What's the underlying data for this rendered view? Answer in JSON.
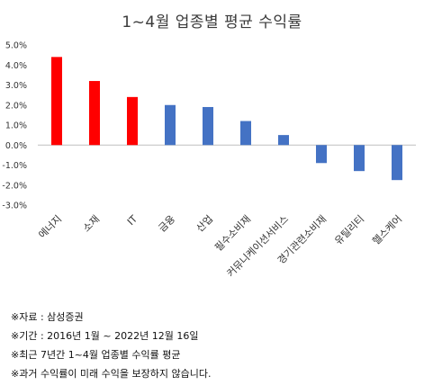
{
  "chart_data": {
    "type": "bar",
    "title": "1~4월 업종별 평균 수익률",
    "categories": [
      "에너지",
      "소재",
      "IT",
      "금융",
      "산업",
      "필수소비재",
      "커뮤니케이션서비스",
      "경기관련소비재",
      "유틸리티",
      "헬스케어"
    ],
    "values": [
      4.4,
      3.2,
      2.4,
      2.0,
      1.9,
      1.2,
      0.5,
      -0.9,
      -1.3,
      -1.75
    ],
    "bar_colors": [
      "#ff0000",
      "#ff0000",
      "#ff0000",
      "#4472c4",
      "#4472c4",
      "#4472c4",
      "#4472c4",
      "#4472c4",
      "#4472c4",
      "#4472c4"
    ],
    "ylim": [
      -3.0,
      5.0
    ],
    "yticks": [
      5.0,
      4.0,
      3.0,
      2.0,
      1.0,
      0.0,
      -1.0,
      -2.0,
      -3.0
    ],
    "ytick_labels": [
      "5.0%",
      "4.0%",
      "3.0%",
      "2.0%",
      "1.0%",
      "0.0%",
      "-1.0%",
      "-2.0%",
      "-3.0%"
    ],
    "grid": false,
    "legend": "none"
  },
  "notes": [
    "※자료 : 삼성증권",
    "※기간 : 2016년 1월 ~ 2022년 12월 16일",
    "※최근 7년간 1~4월 업종별 수익률 평균",
    "※과거 수익률이 미래 수익을 보장하지 않습니다."
  ]
}
